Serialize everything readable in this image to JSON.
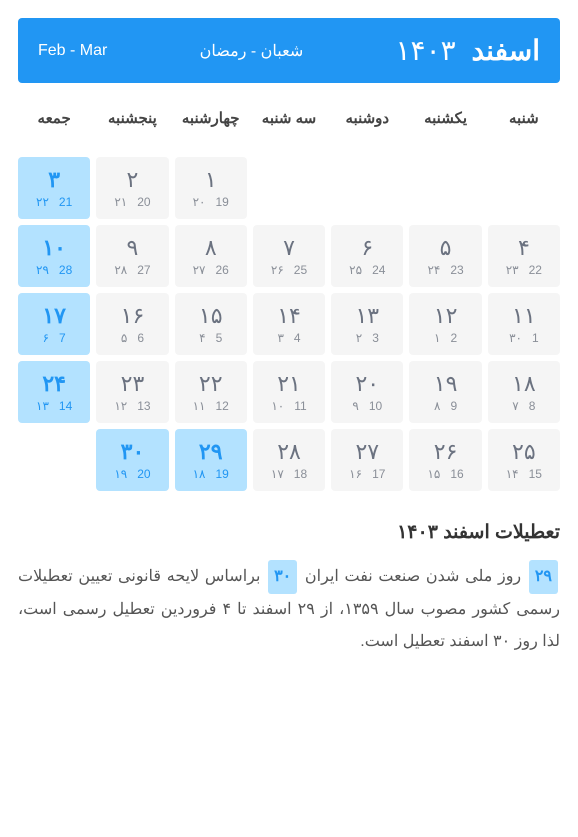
{
  "header": {
    "primaryMonth": "اسفند",
    "primaryYear": "۱۴۰۳",
    "secondaryHijri": "شعبان - رمضان",
    "secondaryGregorian": "Feb - Mar"
  },
  "dow": [
    "شنبه",
    "یکشنبه",
    "دوشنبه",
    "سه شنبه",
    "چهارشنبه",
    "پنجشنبه",
    "جمعه"
  ],
  "cells": [
    {
      "empty": true
    },
    {
      "empty": true
    },
    {
      "empty": true
    },
    {
      "empty": true
    },
    {
      "pd": "۱",
      "hij": "۲۰",
      "greg": "19",
      "holiday": false
    },
    {
      "pd": "۲",
      "hij": "۲۱",
      "greg": "20",
      "holiday": false
    },
    {
      "pd": "۳",
      "hij": "۲۲",
      "greg": "21",
      "holiday": true
    },
    {
      "pd": "۴",
      "hij": "۲۳",
      "greg": "22",
      "holiday": false
    },
    {
      "pd": "۵",
      "hij": "۲۴",
      "greg": "23",
      "holiday": false
    },
    {
      "pd": "۶",
      "hij": "۲۵",
      "greg": "24",
      "holiday": false
    },
    {
      "pd": "۷",
      "hij": "۲۶",
      "greg": "25",
      "holiday": false
    },
    {
      "pd": "۸",
      "hij": "۲۷",
      "greg": "26",
      "holiday": false
    },
    {
      "pd": "۹",
      "hij": "۲۸",
      "greg": "27",
      "holiday": false
    },
    {
      "pd": "۱۰",
      "hij": "۲۹",
      "greg": "28",
      "holiday": true
    },
    {
      "pd": "۱۱",
      "hij": "۳۰",
      "greg": "1",
      "holiday": false
    },
    {
      "pd": "۱۲",
      "hij": "۱",
      "greg": "2",
      "holiday": false
    },
    {
      "pd": "۱۳",
      "hij": "۲",
      "greg": "3",
      "holiday": false
    },
    {
      "pd": "۱۴",
      "hij": "۳",
      "greg": "4",
      "holiday": false
    },
    {
      "pd": "۱۵",
      "hij": "۴",
      "greg": "5",
      "holiday": false
    },
    {
      "pd": "۱۶",
      "hij": "۵",
      "greg": "6",
      "holiday": false
    },
    {
      "pd": "۱۷",
      "hij": "۶",
      "greg": "7",
      "holiday": true
    },
    {
      "pd": "۱۸",
      "hij": "۷",
      "greg": "8",
      "holiday": false
    },
    {
      "pd": "۱۹",
      "hij": "۸",
      "greg": "9",
      "holiday": false
    },
    {
      "pd": "۲۰",
      "hij": "۹",
      "greg": "10",
      "holiday": false
    },
    {
      "pd": "۲۱",
      "hij": "۱۰",
      "greg": "11",
      "holiday": false
    },
    {
      "pd": "۲۲",
      "hij": "۱۱",
      "greg": "12",
      "holiday": false
    },
    {
      "pd": "۲۳",
      "hij": "۱۲",
      "greg": "13",
      "holiday": false
    },
    {
      "pd": "۲۴",
      "hij": "۱۳",
      "greg": "14",
      "holiday": true
    },
    {
      "pd": "۲۵",
      "hij": "۱۴",
      "greg": "15",
      "holiday": false
    },
    {
      "pd": "۲۶",
      "hij": "۱۵",
      "greg": "16",
      "holiday": false
    },
    {
      "pd": "۲۷",
      "hij": "۱۶",
      "greg": "17",
      "holiday": false
    },
    {
      "pd": "۲۸",
      "hij": "۱۷",
      "greg": "18",
      "holiday": false
    },
    {
      "pd": "۲۹",
      "hij": "۱۸",
      "greg": "19",
      "holiday": true
    },
    {
      "pd": "۳۰",
      "hij": "۱۹",
      "greg": "20",
      "holiday": true
    }
  ],
  "holidays": {
    "title": "تعطیلات اسفند ۱۴۰۳",
    "items": [
      {
        "day": "۲۹",
        "text": "روز ملی شدن صنعت نفت ایران"
      },
      {
        "day": "۳۰",
        "text": "براساس لایحه قانونی تعیین تعطیلات رسمی کشور مصوب سال ۱۳۵۹، از ۲۹ اسفند تا ۴ فروردین تعطیل رسمی است، لذا روز ۳۰ اسفند تعطیل است."
      }
    ]
  },
  "colors": {
    "headerBg": "#2196f3",
    "cellBg": "#f5f5f5",
    "holidayBg": "#b3e2ff",
    "holidayFg": "#2196f3"
  }
}
